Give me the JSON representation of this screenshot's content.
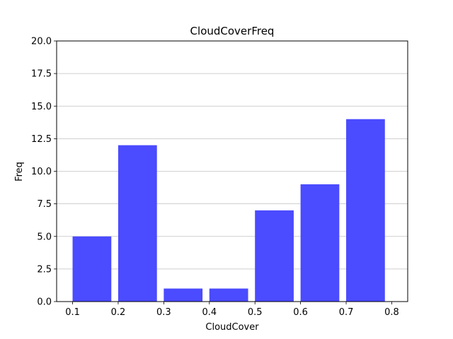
{
  "chart_data": {
    "type": "bar",
    "title": "CloudCoverFreq",
    "xlabel": "CloudCover",
    "ylabel": "Freq",
    "bin_edges": [
      0.1,
      0.2,
      0.3,
      0.4,
      0.5,
      0.6,
      0.7,
      0.8
    ],
    "values": [
      5,
      12,
      1,
      1,
      7,
      9,
      14
    ],
    "xticks": [
      "0.1",
      "0.2",
      "0.3",
      "0.4",
      "0.5",
      "0.6",
      "0.7",
      "0.8"
    ],
    "yticks": [
      "0.0",
      "2.5",
      "5.0",
      "7.5",
      "10.0",
      "12.5",
      "15.0",
      "17.5",
      "20.0"
    ],
    "ylim": [
      0,
      20
    ],
    "grid": "y",
    "bar_color": "#4b4bff",
    "legend": false
  }
}
